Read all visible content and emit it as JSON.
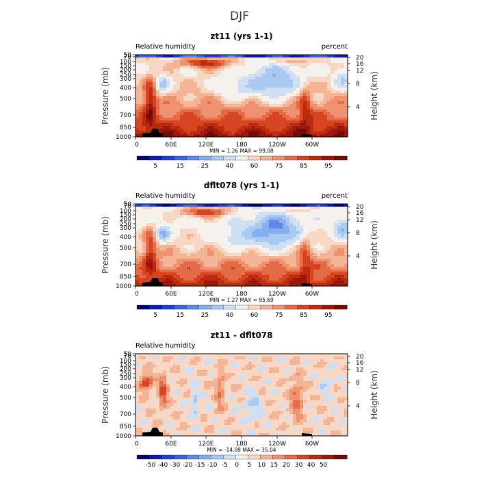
{
  "figure": {
    "title": "DJF"
  },
  "palettes": {
    "rh": [
      "#04066e",
      "#0d1cb0",
      "#1f3fd6",
      "#3b66e0",
      "#5d8ae6",
      "#86aef0",
      "#a9c8f2",
      "#cfe0f4",
      "#f5f2ee",
      "#f8d8c4",
      "#f3b596",
      "#ee9270",
      "#e46b47",
      "#d6451f",
      "#bc2a10",
      "#9a180b",
      "#6e0c05"
    ],
    "diff": [
      "#04066e",
      "#0d1cb0",
      "#1f3fd6",
      "#3b66e0",
      "#5d8ae6",
      "#86aef0",
      "#a9c8f2",
      "#cfe0f4",
      "#f5f2ee",
      "#f8d8c4",
      "#f3b596",
      "#ee9270",
      "#e46b47",
      "#d6451f",
      "#bc2a10",
      "#9a180b",
      "#6e0c05"
    ]
  },
  "chart_data": [
    {
      "type": "contour",
      "title": "zt11 (yrs 1-1)",
      "left_label": "Relative humidity",
      "right_label": "percent",
      "xlabel": "",
      "ylabel": "Pressure (mb)",
      "y2label": "Height (km)",
      "x_ticks": [
        "0",
        "60E",
        "120E",
        "180",
        "120W",
        "60W"
      ],
      "y_ticks": [
        "50",
        "70",
        "100",
        "150",
        "200",
        "250",
        "300",
        "400",
        "500",
        "700",
        "850",
        "1000"
      ],
      "y2_ticks": [
        "20",
        "16",
        "12",
        "8",
        "4"
      ],
      "stats": "MIN =    1.26   MAX =   99.08",
      "colorbar_labels": [
        "5",
        "15",
        "25",
        "40",
        "60",
        "75",
        "85",
        "95"
      ],
      "field": {
        "base": 60,
        "amp": 1.0,
        "upper_dry": 1,
        "noise": 0
      }
    },
    {
      "type": "contour",
      "title": "dflt078 (yrs 1-1)",
      "left_label": "Relative humidity",
      "right_label": "percent",
      "xlabel": "",
      "ylabel": "Pressure (mb)",
      "y2label": "Height (km)",
      "x_ticks": [
        "0",
        "60E",
        "120E",
        "180",
        "120W",
        "60W"
      ],
      "y_ticks": [
        "50",
        "70",
        "100",
        "150",
        "200",
        "250",
        "300",
        "400",
        "500",
        "700",
        "850",
        "1000"
      ],
      "y2_ticks": [
        "20",
        "16",
        "12",
        "8",
        "4"
      ],
      "stats": "MIN =    1.27   MAX =   95.69",
      "colorbar_labels": [
        "5",
        "15",
        "25",
        "40",
        "60",
        "75",
        "85",
        "95"
      ],
      "field": {
        "base": 56,
        "amp": 1.15,
        "upper_dry": 1,
        "noise": 0
      }
    },
    {
      "type": "contour",
      "title": "zt11 - dflt078",
      "left_label": "Relative humidity",
      "right_label": "",
      "xlabel": "",
      "ylabel": "Pressure (mb)",
      "y2label": "Height (km)",
      "x_ticks": [
        "0",
        "60E",
        "120E",
        "180",
        "120W",
        "60W"
      ],
      "y_ticks": [
        "50",
        "70",
        "100",
        "150",
        "200",
        "250",
        "300",
        "400",
        "500",
        "700",
        "850",
        "1000"
      ],
      "y2_ticks": [
        "20",
        "16",
        "12",
        "8",
        "4"
      ],
      "stats": "MIN =  -14.08   MAX =   35.04",
      "colorbar_labels": [
        "-50",
        "-40",
        "-30",
        "-20",
        "-15",
        "-10",
        "-5",
        "0",
        "5",
        "10",
        "15",
        "20",
        "30",
        "40",
        "50"
      ],
      "field": {
        "base": 0,
        "amp": 1.0,
        "upper_dry": 0,
        "noise": 1
      }
    }
  ]
}
